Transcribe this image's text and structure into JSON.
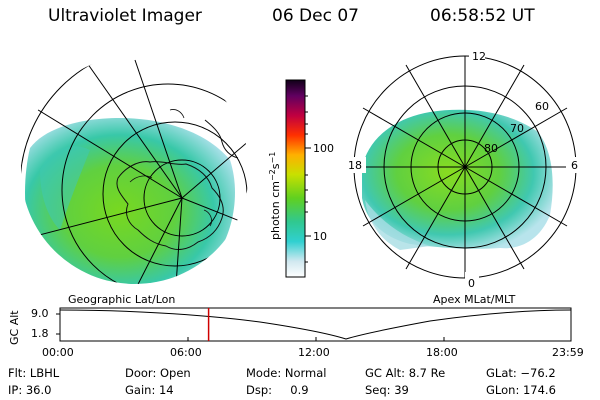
{
  "header": {
    "title": "Ultraviolet Imager",
    "date": "06 Dec 07",
    "time": "06:58:52 UT"
  },
  "left_panel": {
    "caption": "Geographic Lat/Lon"
  },
  "right_panel": {
    "caption": "Apex MLat/MLT",
    "lat_labels": [
      "80",
      "70",
      "60"
    ],
    "mlt_labels": {
      "top": "12",
      "bottom": "0",
      "left": "18",
      "right": "6"
    }
  },
  "colorbar": {
    "label": "photon cm",
    "label_exp1": "−2",
    "label_mid": "s",
    "label_exp2": "−1",
    "ticks": [
      "100",
      "10"
    ],
    "scale": "log",
    "range": [
      2,
      550
    ]
  },
  "altitude_timeline": {
    "axis_label": "GC Alt",
    "y_ticks": [
      "9.0",
      "1.8"
    ],
    "x_ticks": [
      "00:00",
      "06:00",
      "12:00",
      "18:00",
      "23:59"
    ],
    "marker_time_hours": 6.98,
    "marker_color": "#d00000"
  },
  "info": {
    "row1": [
      "Flt: LBHL",
      "Door: Open",
      "Mode: Normal",
      "GC Alt: 8.7 Re",
      "GLat: −76.2"
    ],
    "row2": [
      "IP: 36.0",
      "Gain: 14",
      "Dsp:     0.9",
      "Seq: 39",
      "GLon: 174.6"
    ]
  }
}
